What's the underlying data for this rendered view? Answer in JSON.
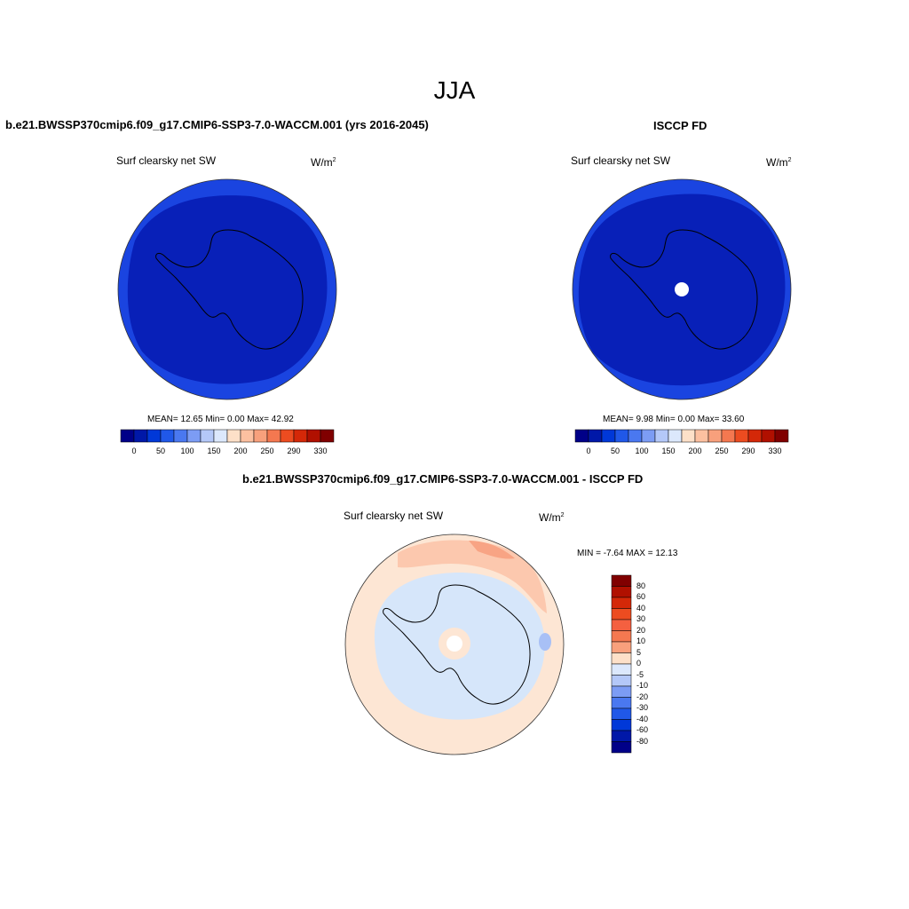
{
  "page_title": "JJA",
  "panels": [
    {
      "title": "b.e21.BWSSP370cmip6.f09_g17.CMIP6-SSP3-7.0-WACCM.001 (yrs 2016-2045)",
      "subtitle": "Surf clearsky net SW",
      "unit": "W/m",
      "unit_sup": "2",
      "stats": "MEAN=  12.65  Min=   0.00  Max=  42.92"
    },
    {
      "title": "ISCCP FD",
      "subtitle": "Surf clearsky net SW",
      "unit": "W/m",
      "unit_sup": "2",
      "stats": "MEAN=   9.98  Min=   0.00  Max=  33.60"
    },
    {
      "title": "b.e21.BWSSP370cmip6.f09_g17.CMIP6-SSP3-7.0-WACCM.001 - ISCCP FD",
      "subtitle": "Surf clearsky net SW",
      "unit": "W/m",
      "unit_sup": "2",
      "stats": "MIN =  -7.64 MAX =  12.13"
    }
  ],
  "abs_colorbar": {
    "labels": [
      "0",
      "50",
      "100",
      "150",
      "200",
      "250",
      "290",
      "330"
    ],
    "colors": [
      "#000088",
      "#0018a8",
      "#0038d8",
      "#2058e8",
      "#4a78f0",
      "#7c9cf4",
      "#b4c8f8",
      "#dce8fc",
      "#fde0c8",
      "#fcc0a0",
      "#f8a07c",
      "#f47850",
      "#ec4c20",
      "#d42808",
      "#b01000",
      "#800000"
    ]
  },
  "diff_colorbar": {
    "labels": [
      "80",
      "60",
      "40",
      "30",
      "20",
      "10",
      "5",
      "0",
      "-5",
      "-10",
      "-20",
      "-30",
      "-40",
      "-60",
      "-80"
    ],
    "colors_top_to_bottom": [
      "#800000",
      "#b01000",
      "#d42808",
      "#ec4c20",
      "#f46040",
      "#f47850",
      "#f8a07c",
      "#fde0c8",
      "#dce8fc",
      "#b4c8f8",
      "#7c9cf4",
      "#4a78f0",
      "#2058e8",
      "#0038d8",
      "#0018a8",
      "#000088"
    ]
  },
  "map_colors": {
    "ocean_outer": "#1a44e0",
    "inner_dark": "#0820b8",
    "diff_pos_light": "#fde6d4",
    "diff_pos_mid": "#fcc8ae",
    "diff_pos_strong": "#f8a484",
    "diff_neg_light": "#d6e6fa",
    "diff_neg_mid": "#a8c0f6"
  }
}
